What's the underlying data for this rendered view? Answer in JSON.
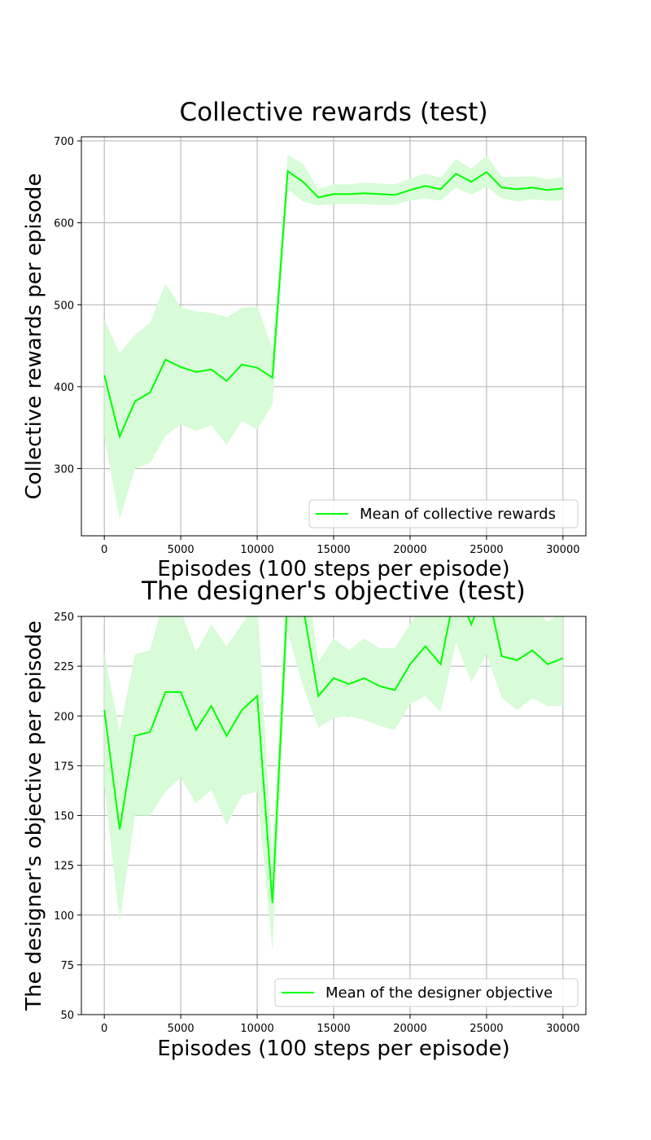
{
  "chart_data": [
    {
      "type": "line",
      "title": "Collective rewards (test)",
      "xlabel": "Episodes (100 steps per episode)",
      "ylabel": "Collective rewards per episode",
      "xlim": [
        -1500,
        31500
      ],
      "ylim": [
        218,
        705
      ],
      "xticks": [
        0,
        5000,
        10000,
        15000,
        20000,
        25000,
        30000
      ],
      "yticks": [
        300,
        400,
        500,
        600,
        700
      ],
      "grid": true,
      "legend_position": "lower-right",
      "color": "#00ff00",
      "band_color": "#d7fcd7",
      "series": [
        {
          "name": "Mean of collective rewards",
          "x": [
            0,
            1000,
            2000,
            3000,
            4000,
            5000,
            6000,
            7000,
            8000,
            9000,
            10000,
            11000,
            12000,
            13000,
            14000,
            15000,
            16000,
            17000,
            18000,
            19000,
            20000,
            21000,
            22000,
            23000,
            24000,
            25000,
            26000,
            27000,
            28000,
            29000,
            30000
          ],
          "values": [
            414,
            339,
            382,
            393,
            433,
            424,
            418,
            421,
            407,
            427,
            423,
            411,
            663,
            650,
            631,
            635,
            635,
            636,
            635,
            634,
            640,
            645,
            641,
            660,
            650,
            662,
            643,
            641,
            643,
            640,
            642
          ],
          "lower": [
            338,
            238,
            300,
            307,
            340,
            354,
            346,
            353,
            329,
            358,
            348,
            378,
            641,
            626,
            621,
            623,
            623,
            623,
            622,
            622,
            627,
            630,
            627,
            643,
            634,
            644,
            630,
            626,
            629,
            627,
            627
          ],
          "upper": [
            482,
            441,
            463,
            478,
            526,
            497,
            492,
            490,
            485,
            496,
            498,
            447,
            683,
            672,
            641,
            647,
            647,
            649,
            648,
            647,
            654,
            660,
            655,
            678,
            666,
            682,
            656,
            656,
            657,
            653,
            656
          ]
        }
      ]
    },
    {
      "type": "line",
      "title": "The designer's objective (test)",
      "xlabel": "Episodes (100 steps per episode)",
      "ylabel": "The designer's objective per episode",
      "xlim": [
        -1500,
        31500
      ],
      "ylim": [
        50,
        250
      ],
      "xticks": [
        0,
        5000,
        10000,
        15000,
        20000,
        25000,
        30000
      ],
      "yticks": [
        50,
        75,
        100,
        125,
        150,
        175,
        200,
        225,
        250
      ],
      "grid": true,
      "legend_position": "lower-right",
      "color": "#00ff00",
      "band_color": "#d7fcd7",
      "series": [
        {
          "name": "Mean of the designer objective",
          "x": [
            0,
            1000,
            2000,
            3000,
            4000,
            5000,
            6000,
            7000,
            8000,
            9000,
            10000,
            11000,
            12000,
            13000,
            14000,
            15000,
            16000,
            17000,
            18000,
            19000,
            20000,
            21000,
            22000,
            23000,
            24000,
            25000,
            26000,
            27000,
            28000,
            29000,
            30000
          ],
          "values": [
            203,
            143,
            190,
            192,
            212,
            212,
            193,
            205,
            190,
            203,
            210,
            106,
            262,
            255,
            210,
            219,
            216,
            219,
            215,
            213,
            226,
            235,
            226,
            265,
            246,
            265,
            230,
            228,
            233,
            226,
            229
          ],
          "lower": [
            165,
            97,
            150,
            150,
            162,
            169,
            156,
            163,
            145,
            160,
            162,
            82,
            242,
            215,
            194,
            199,
            200,
            198,
            195,
            193,
            206,
            210,
            202,
            237,
            217,
            231,
            209,
            203,
            209,
            205,
            205
          ],
          "upper": [
            232,
            192,
            231,
            233,
            262,
            253,
            232,
            246,
            235,
            246,
            258,
            130,
            282,
            283,
            227,
            239,
            233,
            239,
            234,
            234,
            246,
            259,
            250,
            290,
            274,
            297,
            252,
            252,
            256,
            247,
            253
          ]
        }
      ]
    }
  ]
}
